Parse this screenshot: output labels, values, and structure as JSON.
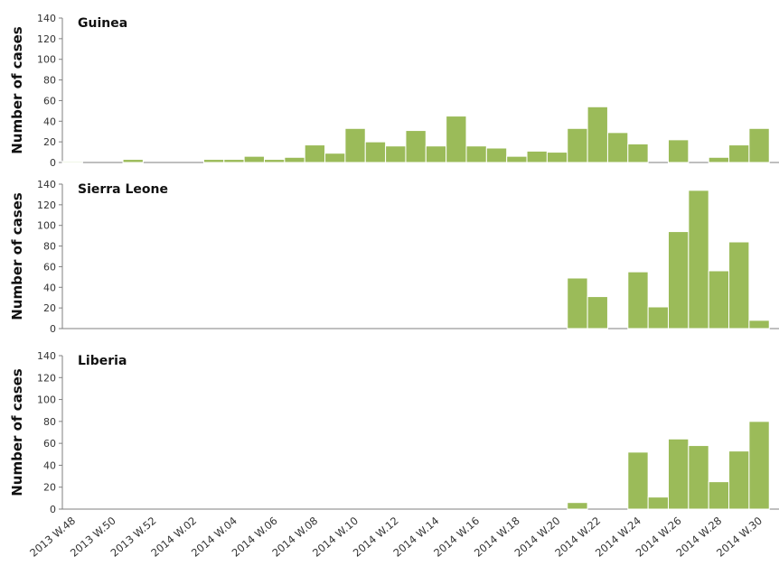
{
  "chart_data": {
    "type": "bar",
    "bar_color": "#9bbb59",
    "bar_edge_color": "#ffffff",
    "axis_color": "#7f7f7f",
    "ylabel": "Number of cases",
    "ylim": [
      0,
      140
    ],
    "yticks": [
      0,
      20,
      40,
      60,
      80,
      100,
      120,
      140
    ],
    "xtick_labels": [
      "2013 W.48",
      "2013 W.50",
      "2013 W.52",
      "2014 W.02",
      "2014 W.04",
      "2014 W.06",
      "2014 W.08",
      "2014 W.10",
      "2014 W.12",
      "2014 W.14",
      "2014 W.16",
      "2014 W.18",
      "2014 W.20",
      "2014 W.22",
      "2014 W.24",
      "2014 W.26",
      "2014 W.28",
      "2014 W.30"
    ],
    "weeks": [
      "2013 W.48",
      "2013 W.49",
      "2013 W.50",
      "2013 W.51",
      "2013 W.52",
      "2014 W.01",
      "2014 W.02",
      "2014 W.03",
      "2014 W.04",
      "2014 W.05",
      "2014 W.06",
      "2014 W.07",
      "2014 W.08",
      "2014 W.09",
      "2014 W.10",
      "2014 W.11",
      "2014 W.12",
      "2014 W.13",
      "2014 W.14",
      "2014 W.15",
      "2014 W.16",
      "2014 W.17",
      "2014 W.18",
      "2014 W.19",
      "2014 W.20",
      "2014 W.21",
      "2014 W.22",
      "2014 W.23",
      "2014 W.24",
      "2014 W.25",
      "2014 W.26",
      "2014 W.27",
      "2014 W.28",
      "2014 W.29",
      "2014 W.30",
      "2014 W.31"
    ],
    "panels": [
      {
        "title": "Guinea",
        "values": [
          1,
          0,
          0,
          3,
          0,
          0,
          0,
          3,
          3,
          6,
          3,
          5,
          17,
          9,
          33,
          20,
          16,
          31,
          16,
          45,
          16,
          14,
          6,
          11,
          10,
          33,
          54,
          29,
          18,
          0,
          22,
          0,
          5,
          17,
          33,
          0
        ]
      },
      {
        "title": "Sierra Leone",
        "values": [
          0,
          0,
          0,
          0,
          0,
          0,
          0,
          0,
          0,
          0,
          0,
          0,
          0,
          0,
          0,
          0,
          0,
          0,
          0,
          0,
          0,
          0,
          0,
          0,
          0,
          49,
          31,
          0,
          55,
          21,
          94,
          134,
          56,
          84,
          8,
          0
        ]
      },
      {
        "title": "Liberia",
        "values": [
          0,
          0,
          0,
          0,
          0,
          0,
          0,
          0,
          0,
          0,
          0,
          0,
          0,
          0,
          0,
          0,
          0,
          0,
          0,
          0,
          0,
          0,
          0,
          0,
          0,
          6,
          0,
          0,
          52,
          11,
          64,
          58,
          25,
          53,
          80,
          0
        ]
      }
    ]
  }
}
